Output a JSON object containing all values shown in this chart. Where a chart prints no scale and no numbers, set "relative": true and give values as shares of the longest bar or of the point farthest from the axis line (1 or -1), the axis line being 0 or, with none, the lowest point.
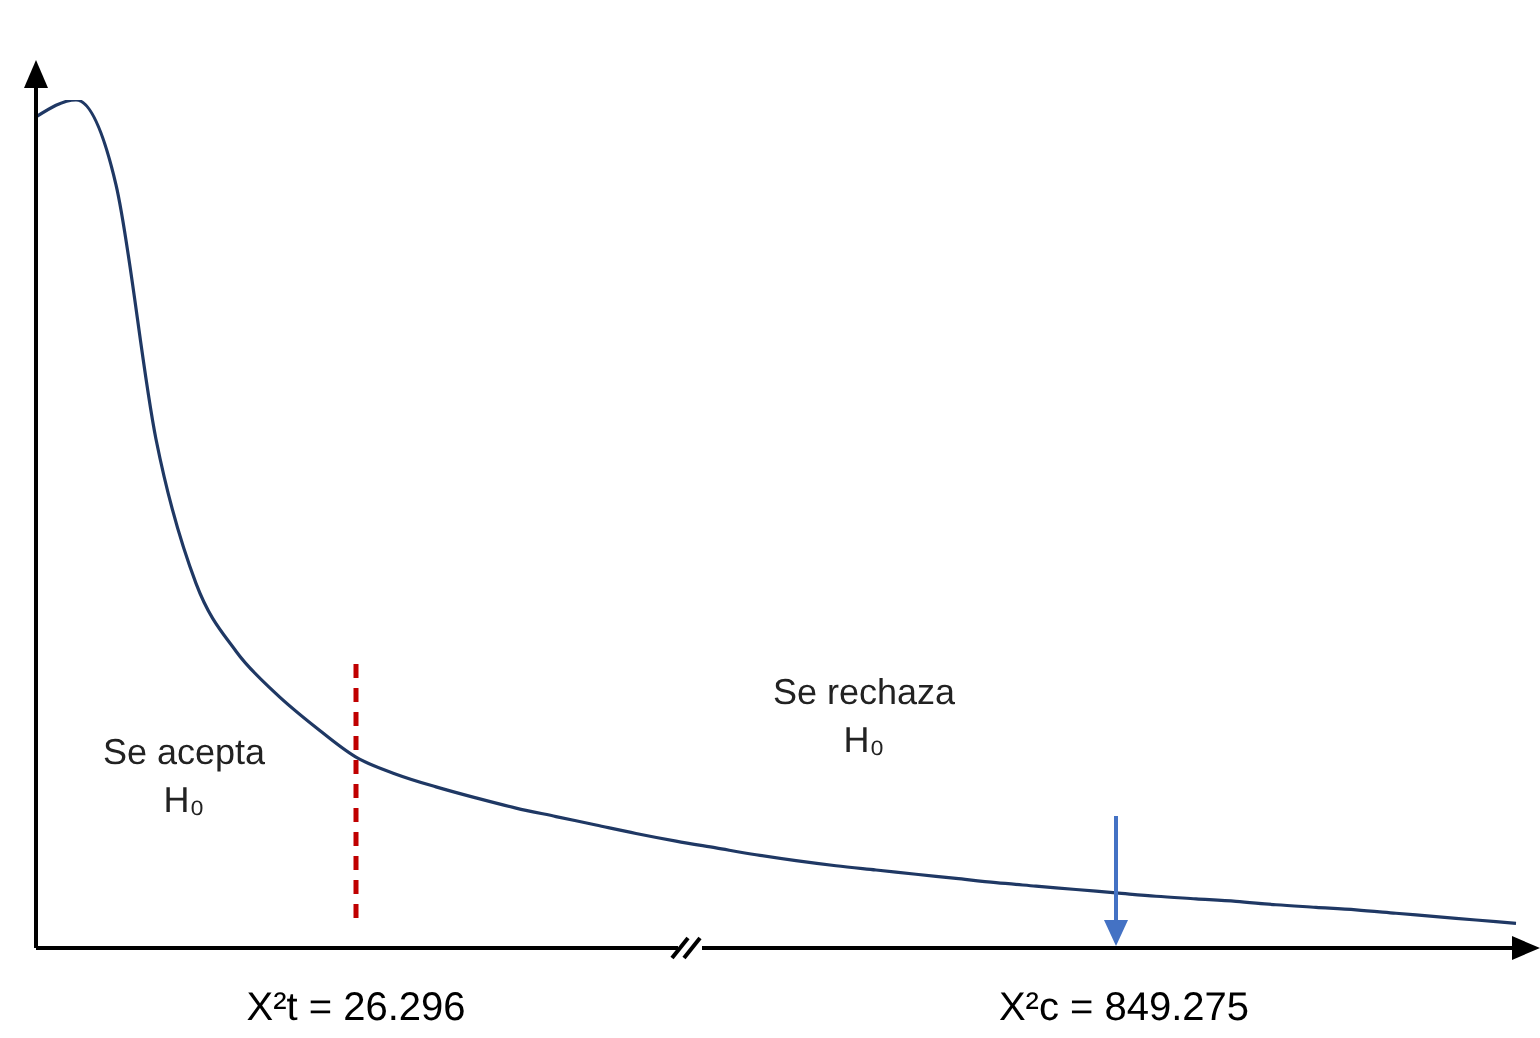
{
  "chart_data": {
    "type": "line",
    "relative": true,
    "categories": [
      null,
      null,
      null,
      null,
      null,
      null,
      null,
      null,
      null,
      null,
      null,
      null,
      null,
      null,
      null,
      null,
      null,
      null,
      null,
      null,
      null,
      null,
      null,
      null,
      null,
      null,
      null,
      null,
      null,
      null,
      null,
      null,
      null,
      null,
      null,
      null,
      null,
      null
    ],
    "series": [
      {
        "color": "#1f3864",
        "values": [
          0.98,
          1,
          0.9,
          0.6,
          0.43,
          0.35,
          0.3,
          0.26,
          0.225,
          0.205,
          0.19,
          0.177,
          0.165,
          0.155,
          0.145,
          0.135,
          0.126,
          0.118,
          0.11,
          0.103,
          0.097,
          0.092,
          0.087,
          0.082,
          0.077,
          0.073,
          0.069,
          0.065,
          0.061,
          0.058,
          0.055,
          0.051,
          0.048,
          0.045,
          0.041,
          0.037,
          0.033,
          0.029
        ]
      }
    ],
    "annotations": [
      "Se acepta H₀",
      "Se rechaza H₀",
      "X²c = 849.275",
      "X²t = 26.296"
    ],
    "marker": "none"
  }
}
